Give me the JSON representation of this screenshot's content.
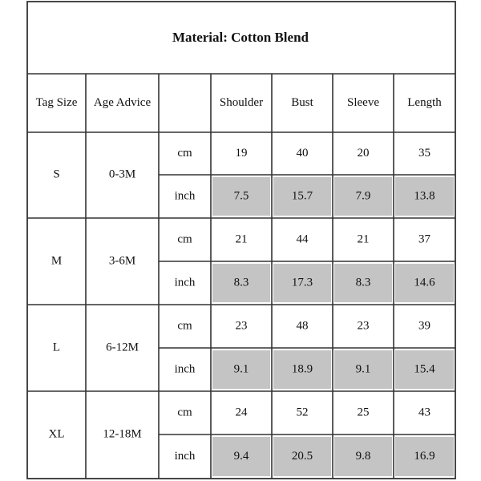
{
  "title": "Material: Cotton Blend",
  "headers": [
    "Tag Size",
    "Age Advice",
    "",
    "Shoulder",
    "Bust",
    "Sleeve",
    "Length"
  ],
  "unit_labels": {
    "cm": "cm",
    "inch": "inch"
  },
  "colors": {
    "line": "#333333",
    "inch_fill": "#c4c4c4",
    "background": "#ffffff",
    "text": "#111111"
  },
  "rows": [
    {
      "size": "S",
      "age": "0-3M",
      "cm": [
        "19",
        "40",
        "20",
        "35"
      ],
      "inch": [
        "7.5",
        "15.7",
        "7.9",
        "13.8"
      ]
    },
    {
      "size": "M",
      "age": "3-6M",
      "cm": [
        "21",
        "44",
        "21",
        "37"
      ],
      "inch": [
        "8.3",
        "17.3",
        "8.3",
        "14.6"
      ]
    },
    {
      "size": "L",
      "age": "6-12M",
      "cm": [
        "23",
        "48",
        "23",
        "39"
      ],
      "inch": [
        "9.1",
        "18.9",
        "9.1",
        "15.4"
      ]
    },
    {
      "size": "XL",
      "age": "12-18M",
      "cm": [
        "24",
        "52",
        "25",
        "43"
      ],
      "inch": [
        "9.4",
        "20.5",
        "9.8",
        "16.9"
      ]
    }
  ],
  "chart_data": {
    "type": "table",
    "title": "Material: Cotton Blend",
    "columns": [
      "Tag Size",
      "Age Advice",
      "",
      "Shoulder",
      "Bust",
      "Sleeve",
      "Length"
    ],
    "rows": [
      [
        "S",
        "0-3M",
        "cm",
        "19",
        "40",
        "20",
        "35"
      ],
      [
        "S",
        "0-3M",
        "inch",
        "7.5",
        "15.7",
        "7.9",
        "13.8"
      ],
      [
        "M",
        "3-6M",
        "cm",
        "21",
        "44",
        "21",
        "37"
      ],
      [
        "M",
        "3-6M",
        "inch",
        "8.3",
        "17.3",
        "8.3",
        "14.6"
      ],
      [
        "L",
        "6-12M",
        "cm",
        "23",
        "48",
        "23",
        "39"
      ],
      [
        "L",
        "6-12M",
        "inch",
        "9.1",
        "18.9",
        "9.1",
        "15.4"
      ],
      [
        "XL",
        "12-18M",
        "cm",
        "24",
        "52",
        "25",
        "43"
      ],
      [
        "XL",
        "12-18M",
        "inch",
        "9.4",
        "20.5",
        "9.8",
        "16.9"
      ]
    ]
  }
}
